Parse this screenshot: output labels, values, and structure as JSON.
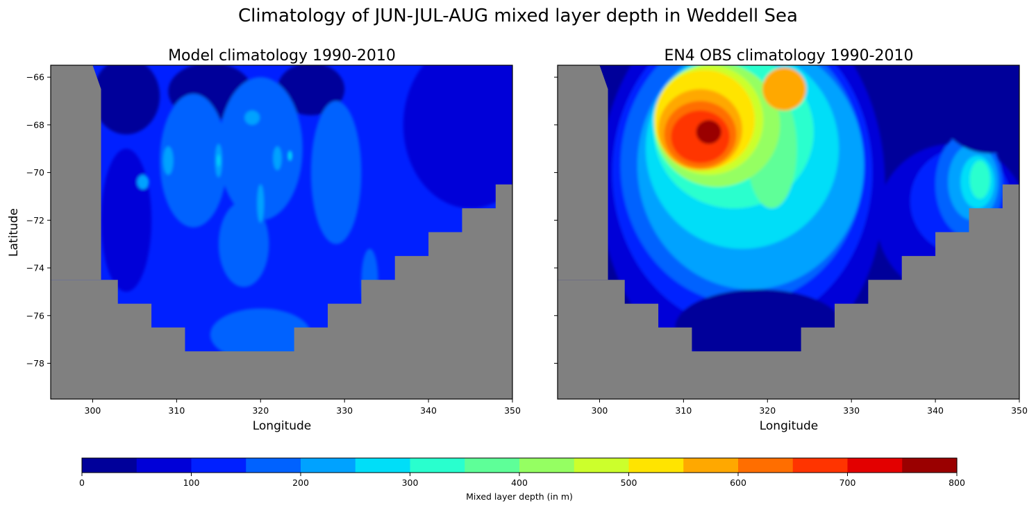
{
  "chart_data": {
    "type": "heatmap",
    "title": "Climatology of JUN-JUL-AUG mixed layer depth in Weddell Sea",
    "colors": {
      "land": "#808080",
      "frame": "#000000"
    },
    "panels": [
      {
        "title": "Model climatology 1990-2010",
        "xlabel": "Longitude",
        "ylabel": "Latitude",
        "xlim": [
          295,
          350
        ],
        "ylim": [
          -79.5,
          -65.5
        ],
        "xticks": [
          300,
          310,
          320,
          330,
          340,
          350
        ],
        "yticks": [
          -66,
          -68,
          -70,
          -72,
          -74,
          -76,
          -78
        ],
        "background_level": 2,
        "blobs": [
          {
            "lon": 304,
            "lat": -66.8,
            "rx": 4,
            "ry": 1.6,
            "level": 0
          },
          {
            "lon": 314,
            "lat": -66.6,
            "rx": 5,
            "ry": 1.2,
            "level": 0
          },
          {
            "lon": 326,
            "lat": -66.5,
            "rx": 4,
            "ry": 1.1,
            "level": 0
          },
          {
            "lon": 303,
            "lat": -72.6,
            "rx": 0.8,
            "ry": 0.2,
            "level": 0
          },
          {
            "lon": 345,
            "lat": -68,
            "rx": 8,
            "ry": 3.5,
            "level": 1
          },
          {
            "lon": 304,
            "lat": -72,
            "rx": 3,
            "ry": 3,
            "level": 1
          },
          {
            "lon": 312,
            "lat": -69.5,
            "rx": 4,
            "ry": 2.8,
            "level": 3
          },
          {
            "lon": 320,
            "lat": -69,
            "rx": 5,
            "ry": 3,
            "level": 3
          },
          {
            "lon": 329,
            "lat": -70,
            "rx": 3,
            "ry": 3,
            "level": 3
          },
          {
            "lon": 320,
            "lat": -76.8,
            "rx": 6,
            "ry": 1.1,
            "level": 3
          },
          {
            "lon": 318,
            "lat": -73,
            "rx": 3,
            "ry": 1.8,
            "level": 3
          },
          {
            "lon": 333,
            "lat": -74.5,
            "rx": 1,
            "ry": 1.3,
            "level": 3
          },
          {
            "lon": 309,
            "lat": -69.5,
            "rx": 0.6,
            "ry": 0.6,
            "level": 4
          },
          {
            "lon": 315,
            "lat": -69.5,
            "rx": 0.4,
            "ry": 0.7,
            "level": 4
          },
          {
            "lon": 319,
            "lat": -67.7,
            "rx": 0.9,
            "ry": 0.3,
            "level": 4
          },
          {
            "lon": 322,
            "lat": -69.4,
            "rx": 0.5,
            "ry": 0.5,
            "level": 4
          },
          {
            "lon": 320,
            "lat": -71.3,
            "rx": 0.4,
            "ry": 0.8,
            "level": 4
          },
          {
            "lon": 306,
            "lat": -70.4,
            "rx": 0.7,
            "ry": 0.3,
            "level": 4
          },
          {
            "lon": 315,
            "lat": -69.5,
            "rx": 0.15,
            "ry": 0.25,
            "level": 5
          },
          {
            "lon": 323.5,
            "lat": -69.3,
            "rx": 0.2,
            "ry": 0.2,
            "level": 5
          }
        ]
      },
      {
        "title": "EN4 OBS climatology 1990-2010",
        "xlabel": "Longitude",
        "ylabel": "",
        "xlim": [
          295,
          350
        ],
        "ylim": [
          -79.5,
          -65.5
        ],
        "xticks": [
          300,
          310,
          320,
          330,
          340,
          350
        ],
        "yticks": [
          -66,
          -68,
          -70,
          -72,
          -74,
          -76,
          -78
        ],
        "background_level": 0,
        "blobs": [
          {
            "lon": 317,
            "lat": -70.5,
            "rx": 17,
            "ry": 8,
            "level": 1
          },
          {
            "lon": 342,
            "lat": -72,
            "rx": 9,
            "ry": 3.2,
            "level": 1
          },
          {
            "lon": 317,
            "lat": -70,
            "rx": 15.5,
            "ry": 6.5,
            "level": 2
          },
          {
            "lon": 343,
            "lat": -71.2,
            "rx": 6,
            "ry": 2.2,
            "level": 2
          },
          {
            "lon": 317,
            "lat": -69.7,
            "rx": 14.5,
            "ry": 5.8,
            "level": 3
          },
          {
            "lon": 344,
            "lat": -70.5,
            "rx": 4,
            "ry": 2.2,
            "level": 3
          },
          {
            "lon": 318,
            "lat": -69.7,
            "rx": 13.5,
            "ry": 5.2,
            "level": 4
          },
          {
            "lon": 344.5,
            "lat": -70.4,
            "rx": 3,
            "ry": 1.6,
            "level": 4
          },
          {
            "lon": 317,
            "lat": -69,
            "rx": 11.5,
            "ry": 4.2,
            "level": 5
          },
          {
            "lon": 345,
            "lat": -70.4,
            "rx": 2,
            "ry": 1.1,
            "level": 5
          },
          {
            "lon": 316,
            "lat": -68.3,
            "rx": 9.5,
            "ry": 3.2,
            "level": 6
          },
          {
            "lon": 345.3,
            "lat": -70.3,
            "rx": 1.2,
            "ry": 0.8,
            "level": 6
          },
          {
            "lon": 320.5,
            "lat": -69,
            "rx": 3,
            "ry": 2.5,
            "level": 7
          },
          {
            "lon": 314,
            "lat": -68,
            "rx": 7.5,
            "ry": 2.6,
            "level": 8
          },
          {
            "lon": 313,
            "lat": -67.8,
            "rx": 6.5,
            "ry": 2.3,
            "level": 9
          },
          {
            "lon": 312.5,
            "lat": -67.8,
            "rx": 6,
            "ry": 2.1,
            "level": 10
          },
          {
            "lon": 322,
            "lat": -66.5,
            "rx": 2.6,
            "ry": 0.9,
            "level": 11
          },
          {
            "lon": 312,
            "lat": -68.2,
            "rx": 5,
            "ry": 1.7,
            "level": 11
          },
          {
            "lon": 312,
            "lat": -68.4,
            "rx": 4.3,
            "ry": 1.4,
            "level": 12
          },
          {
            "lon": 312,
            "lat": -68.5,
            "rx": 3.5,
            "ry": 1.1,
            "level": 13
          },
          {
            "lon": 313,
            "lat": -68.3,
            "rx": 1.5,
            "ry": 0.5,
            "level": 15
          },
          {
            "lon": 346.5,
            "lat": -67,
            "rx": 6.5,
            "ry": 2.2,
            "level": 0
          },
          {
            "lon": 319,
            "lat": -76.5,
            "rx": 10,
            "ry": 1.6,
            "level": 0
          }
        ]
      }
    ],
    "land": {
      "coast_south": [
        [
          295,
          -74.5
        ],
        [
          303,
          -74.5
        ],
        [
          303,
          -75.5
        ],
        [
          307,
          -75.5
        ],
        [
          307,
          -76.5
        ],
        [
          311,
          -76.5
        ],
        [
          311,
          -77.5
        ],
        [
          324,
          -77.5
        ],
        [
          324,
          -76.5
        ],
        [
          328,
          -76.5
        ],
        [
          328,
          -75.5
        ],
        [
          332,
          -75.5
        ],
        [
          332,
          -74.5
        ],
        [
          336,
          -74.5
        ],
        [
          336,
          -73.5
        ],
        [
          340,
          -73.5
        ],
        [
          340,
          -72.5
        ],
        [
          344,
          -72.5
        ],
        [
          344,
          -71.5
        ],
        [
          348,
          -71.5
        ],
        [
          348,
          -70.5
        ],
        [
          350,
          -70.5
        ]
      ],
      "coast_west": [
        [
          295,
          -65.5
        ],
        [
          300,
          -65.5
        ],
        [
          301,
          -66.5
        ],
        [
          301,
          -74.5
        ],
        [
          295,
          -74.5
        ]
      ]
    },
    "colorbar": {
      "label": "Mixed layer depth (in m)",
      "ticks": [
        0,
        100,
        200,
        300,
        400,
        500,
        600,
        700,
        800
      ],
      "levels": [
        0,
        50,
        100,
        150,
        200,
        250,
        300,
        350,
        400,
        450,
        500,
        550,
        600,
        650,
        700,
        750,
        800
      ],
      "colors": [
        "#00009a",
        "#0000d8",
        "#0020ff",
        "#0062ff",
        "#00a2ff",
        "#00def8",
        "#29ffce",
        "#5eff98",
        "#95ff62",
        "#ccff2c",
        "#ffe400",
        "#ffa800",
        "#ff6e00",
        "#ff3400",
        "#e30000",
        "#9a0000"
      ]
    }
  }
}
